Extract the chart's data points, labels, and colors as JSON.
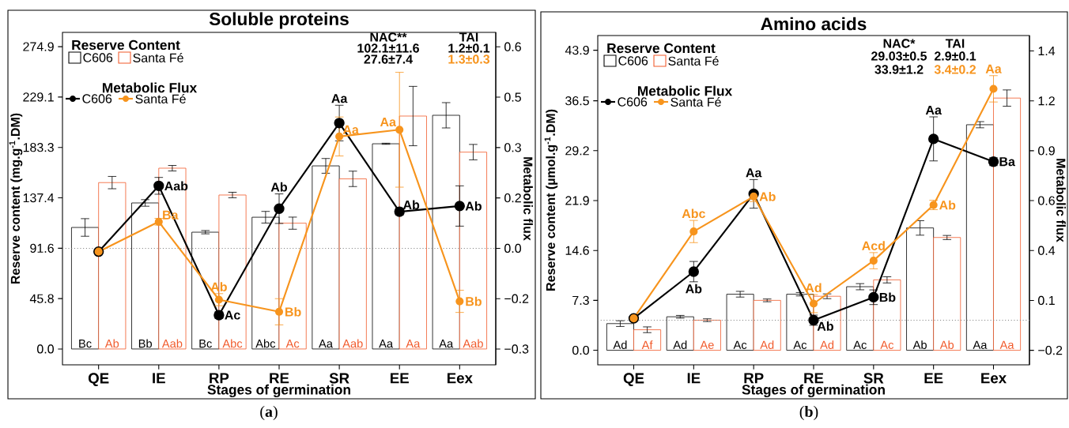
{
  "chart_data": [
    {
      "type": "bar",
      "title": "Soluble proteins",
      "xlabel": "Stages of germination",
      "ylabel": "Reserve content (mg.g$^{-1}$.DM)",
      "y2label": "Metabolic flux",
      "legend_title": "Reserve Content",
      "legend": "top left",
      "categories": [
        "QE",
        "IE",
        "RP",
        "RE",
        "SR",
        "EE",
        "Eex"
      ],
      "series": [
        {
          "name": "C606",
          "color": "#000000",
          "values": [
            110.5,
            132.8,
            106.2,
            119.8,
            166.5,
            186.6,
            212.5
          ],
          "errors": [
            8,
            3,
            1.5,
            5.3,
            6.7,
            0.5,
            11.5
          ],
          "value_labels": [
            "Bc",
            "Bb",
            "Bc",
            "Abc",
            "Aa",
            "Aa",
            "Aa"
          ]
        },
        {
          "name": "Santa Fé",
          "color": "#f15a2b",
          "values": [
            151.3,
            164.4,
            140.0,
            114.4,
            154.7,
            211.8,
            179.0
          ],
          "errors": [
            5.6,
            2.5,
            2.5,
            5.5,
            7,
            27,
            7
          ],
          "value_labels": [
            "Ab",
            "Aab",
            "Abc",
            "Ac",
            "Aab",
            "Aa",
            "Aab"
          ]
        },
        {
          "type": "line",
          "axis": "y2",
          "marker": "circle",
          "name": "C606",
          "color": "#000000",
          "values": [
            -0.01,
            0.186,
            -0.199,
            0.118,
            0.373,
            0.109,
            0.126
          ],
          "errors": [
            null,
            0.025,
            0.01,
            0.044,
            0.053,
            0.01,
            0.06
          ],
          "value_labels": [
            null,
            "Aab",
            "Ac",
            "Ab",
            "Aa",
            "Ab",
            "Ab"
          ]
        },
        {
          "type": "line",
          "axis": "y2",
          "marker": "circle",
          "name": "Santa Fé",
          "color": "#f7941d",
          "values": [
            -0.01,
            0.079,
            -0.153,
            -0.189,
            0.333,
            0.353,
            -0.158
          ],
          "errors": [
            null,
            0.01,
            0.018,
            0.039,
            0.058,
            0.171,
            0.033
          ],
          "value_labels": [
            null,
            "Ba",
            "Ab",
            "Bb",
            "Aa",
            "Aa",
            "Bb"
          ]
        }
      ],
      "ylim": [
        -14.4,
        287.9
      ],
      "yticks": [
        {
          "value": 0,
          "label": "0.0"
        },
        45.8,
        91.6,
        137.4,
        183.3,
        229.1,
        274.9
      ],
      "y2lim": [
        -0.347,
        0.643
      ],
      "y2ticks": [
        {
          "value": -0.3,
          "label": "−0.3"
        },
        {
          "value": -0.15,
          "label": "−0.2"
        },
        {
          "value": 0,
          "label": "0.0"
        },
        {
          "value": 0.15,
          "label": "0.2"
        },
        0.3,
        {
          "value": 0.45,
          "label": "0.5"
        },
        0.6
      ],
      "ref_lines": [
        {
          "axis": "y2",
          "value": 0,
          "color": "#808080",
          "line_style": "dotted"
        }
      ],
      "annotations": [
        "Metabolic Flux",
        "NAC**",
        "102.1±11.6",
        "27.6±7.4",
        "TAI",
        "1.2±0.1",
        "1.3±0.3",
        "(**a**)"
      ]
    },
    {
      "type": "bar",
      "title": "Amino acids",
      "xlabel": "Stages of germination",
      "ylabel": "Reserve content (µmol.g$^{-1}$.DM)",
      "y2label": "Metabolic flux",
      "legend_title": "Reserve Content",
      "legend": "top left",
      "categories": [
        "QE",
        "IE",
        "RP",
        "RE",
        "SR",
        "EE",
        "Eex"
      ],
      "series": [
        {
          "name": "C606",
          "color": "#000000",
          "values": [
            3.9,
            4.9,
            8.2,
            8.2,
            9.3,
            17.9,
            33.0
          ],
          "errors": [
            0.42,
            0.2,
            0.42,
            0.25,
            0.45,
            1.06,
            0.45
          ],
          "value_labels": [
            "Ad",
            "Ad",
            "Ac",
            "Ac",
            "Ac",
            "Ab",
            "Aa"
          ]
        },
        {
          "name": "Santa Fé",
          "color": "#f15a2b",
          "values": [
            3.0,
            4.4,
            7.3,
            7.9,
            10.3,
            16.5,
            36.9
          ],
          "errors": [
            0.42,
            0.2,
            0.2,
            0.35,
            0.45,
            0.3,
            1.19
          ],
          "value_labels": [
            "Af",
            "Ae",
            "Ad",
            "Ad",
            "Ac",
            "Ab",
            "Aa"
          ]
        },
        {
          "type": "line",
          "axis": "y2",
          "marker": "circle",
          "name": "C606",
          "color": "#000000",
          "values": [
            0.01,
            0.258,
            0.671,
            0.0,
            0.122,
            0.963,
            0.842
          ],
          "errors": [
            null,
            0.054,
            0.076,
            0.027,
            0.039,
            0.117,
            0.021
          ],
          "value_labels": [
            null,
            "Ab",
            "Aa",
            "Ab",
            "Bb",
            "Aa",
            "Ba"
          ]
        },
        {
          "type": "line",
          "axis": "y2",
          "marker": "circle",
          "name": "Santa Fé",
          "color": "#f7941d",
          "values": [
            0.01,
            0.471,
            0.657,
            0.088,
            0.316,
            0.612,
            1.229
          ],
          "errors": [
            null,
            0.059,
            0.027,
            0.048,
            0.043,
            0.025,
            0.07
          ],
          "value_labels": [
            null,
            "Abc",
            "Ab",
            "Ad",
            "Acd",
            "Ab",
            "Aa"
          ]
        }
      ],
      "ylim": [
        -2.13,
        46.05
      ],
      "yticks": [
        {
          "value": 0,
          "label": "0.0"
        },
        7.3,
        14.6,
        21.9,
        29.2,
        36.5,
        43.9
      ],
      "y2lim": [
        -0.237,
        1.512
      ],
      "y2ticks": [
        {
          "value": -0.16,
          "label": "−0.2"
        },
        {
          "value": 0.105,
          "label": "0.1"
        },
        {
          "value": 0.37,
          "label": "0.4"
        },
        {
          "value": 0.635,
          "label": "0.6"
        },
        {
          "value": 0.9,
          "label": "0.9"
        },
        {
          "value": 1.165,
          "label": "1.2"
        },
        {
          "value": 1.43,
          "label": "1.4"
        }
      ],
      "ref_lines": [
        {
          "axis": "y2",
          "value": 0,
          "color": "#808080",
          "line_style": "dotted"
        }
      ],
      "annotations": [
        "Metabolic Flux",
        "NAC*",
        "29.03±0.5",
        "33.9±1.2",
        "TAI",
        "2.9±0.1",
        "3.4±0.2",
        "(**b**)"
      ]
    }
  ]
}
